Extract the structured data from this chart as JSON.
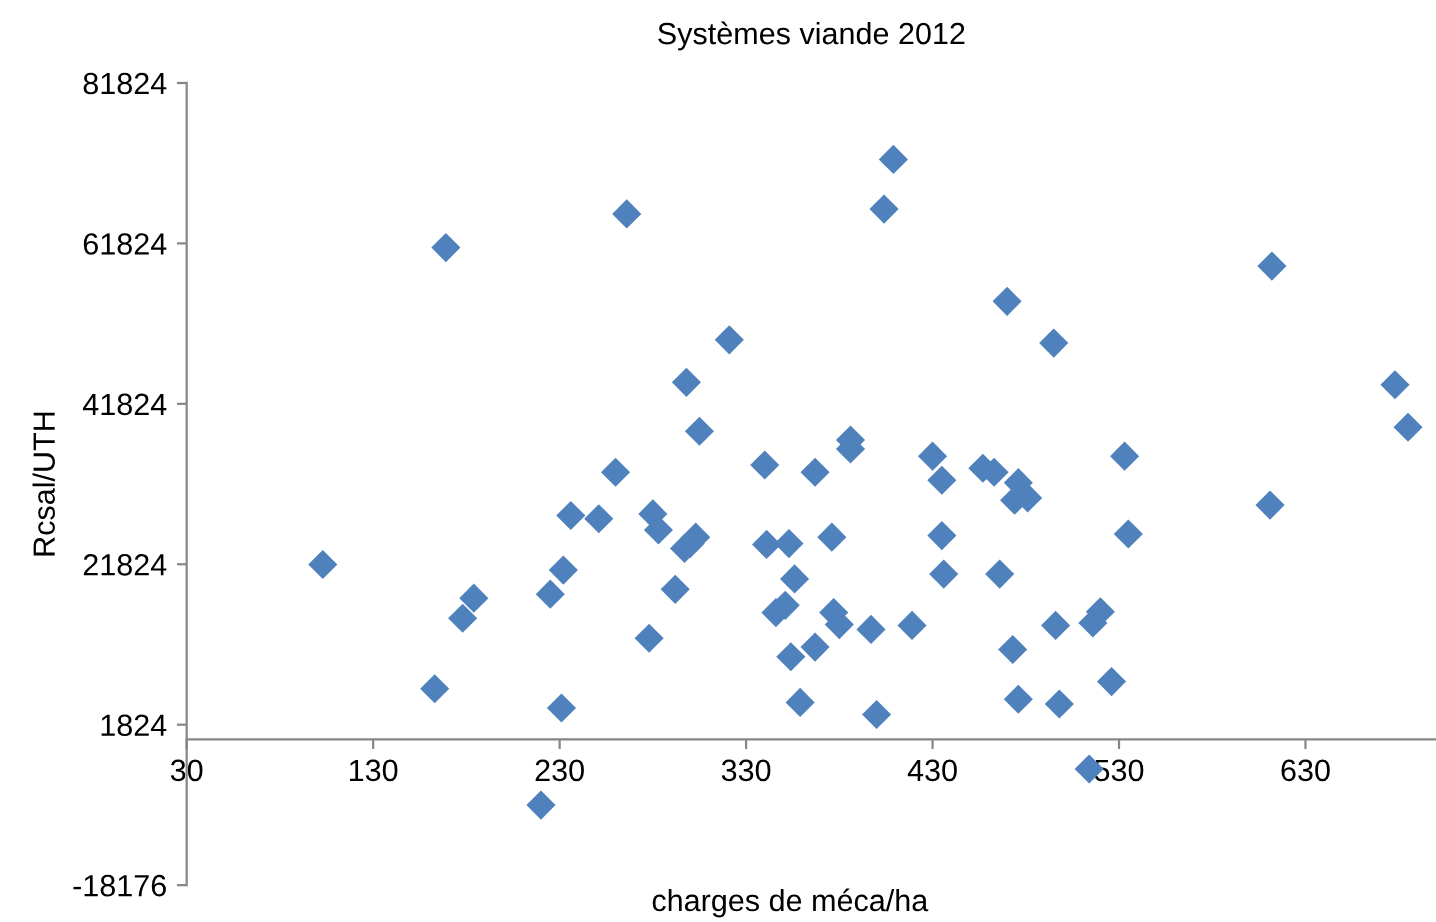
{
  "chart_data": {
    "type": "scatter",
    "title": "Systèmes viande 2012",
    "xlabel": "charges de méca/ha",
    "ylabel": "Rcsal/UTH",
    "marker": "diamond",
    "grid": false,
    "legend": false,
    "xlim": [
      30,
      700
    ],
    "xticks": [
      30,
      130,
      230,
      330,
      430,
      530,
      630
    ],
    "ylim": [
      -18176,
      81824
    ],
    "yticks": [
      -18176,
      1824,
      21824,
      41824,
      61824,
      81824
    ],
    "series": [
      {
        "color": "#4f81bd",
        "x": [
          103,
          169,
          266,
          163,
          178,
          184,
          231,
          220,
          225,
          232,
          236,
          251,
          260,
          278,
          280,
          283,
          292,
          297,
          300,
          303,
          298,
          305,
          321,
          340,
          341,
          353,
          356,
          346,
          351,
          354,
          359,
          367,
          367,
          409,
          404,
          612,
          470,
          495,
          678,
          685,
          386,
          386,
          430,
          435,
          457,
          463,
          476,
          474,
          481,
          533,
          611,
          535,
          435,
          376,
          436,
          466,
          377,
          380,
          397,
          419,
          496,
          516,
          520,
          473,
          400,
          476,
          498,
          526,
          514
        ],
        "values": [
          21800,
          61300,
          65500,
          6300,
          15100,
          17600,
          3900,
          -8200,
          18100,
          21100,
          27900,
          27500,
          33300,
          12600,
          28100,
          26100,
          18700,
          23800,
          24400,
          25200,
          44500,
          38400,
          49800,
          34200,
          24300,
          24400,
          20000,
          15800,
          16700,
          10300,
          4600,
          11500,
          33300,
          72300,
          66100,
          59000,
          54600,
          49400,
          44200,
          38900,
          37300,
          36200,
          35300,
          32300,
          33800,
          33300,
          32000,
          29800,
          30100,
          35300,
          29200,
          25600,
          25400,
          25200,
          20600,
          20600,
          15800,
          14300,
          13700,
          14200,
          14200,
          14500,
          15900,
          11200,
          3100,
          5000,
          4400,
          7200,
          -3700
        ]
      }
    ]
  }
}
